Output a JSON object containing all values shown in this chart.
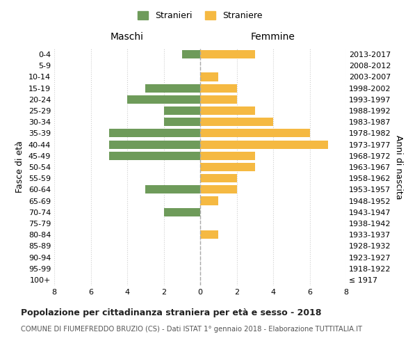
{
  "age_groups": [
    "100+",
    "95-99",
    "90-94",
    "85-89",
    "80-84",
    "75-79",
    "70-74",
    "65-69",
    "60-64",
    "55-59",
    "50-54",
    "45-49",
    "40-44",
    "35-39",
    "30-34",
    "25-29",
    "20-24",
    "15-19",
    "10-14",
    "5-9",
    "0-4"
  ],
  "birth_years": [
    "≤ 1917",
    "1918-1922",
    "1923-1927",
    "1928-1932",
    "1933-1937",
    "1938-1942",
    "1943-1947",
    "1948-1952",
    "1953-1957",
    "1958-1962",
    "1963-1967",
    "1968-1972",
    "1973-1977",
    "1978-1982",
    "1983-1987",
    "1988-1992",
    "1993-1997",
    "1998-2002",
    "2003-2007",
    "2008-2012",
    "2013-2017"
  ],
  "maschi": [
    0,
    0,
    0,
    0,
    0,
    0,
    2,
    0,
    3,
    0,
    0,
    5,
    5,
    5,
    2,
    2,
    4,
    3,
    0,
    0,
    1
  ],
  "femmine": [
    0,
    0,
    0,
    0,
    1,
    0,
    0,
    1,
    2,
    2,
    3,
    3,
    7,
    6,
    4,
    3,
    2,
    2,
    1,
    0,
    3
  ],
  "color_maschi": "#6e9b5a",
  "color_femmine": "#f5b942",
  "title_main": "Popolazione per cittadinanza straniera per età e sesso - 2018",
  "title_sub": "COMUNE DI FIUMEFREDDO BRUZIO (CS) - Dati ISTAT 1° gennaio 2018 - Elaborazione TUTTITALIA.IT",
  "label_maschi": "Maschi",
  "label_femmine": "Femmine",
  "legend_stranieri": "Stranieri",
  "legend_straniere": "Straniere",
  "ylabel_left": "Fasce di età",
  "ylabel_right": "Anni di nascita",
  "xlim": 8,
  "background_color": "#ffffff",
  "grid_color": "#cccccc"
}
